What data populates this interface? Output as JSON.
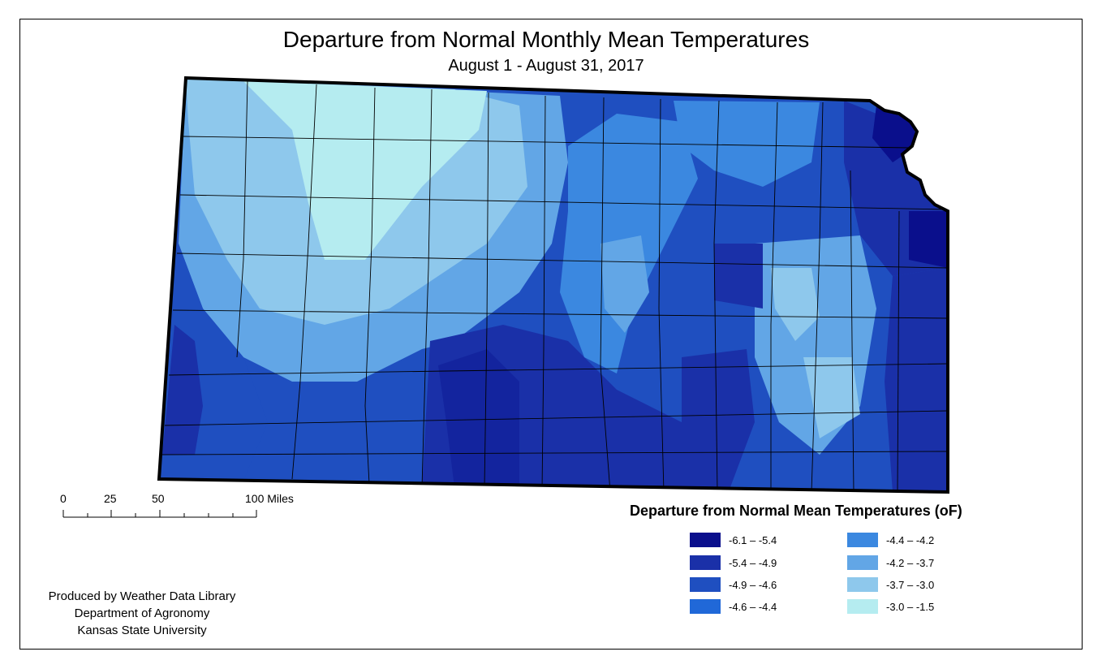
{
  "title": "Departure from Normal Monthly Mean Temperatures",
  "subtitle": "August 1 - August 31, 2017",
  "scalebar": {
    "ticks": [
      "0",
      "25",
      "50",
      "100 Miles"
    ]
  },
  "legend": {
    "title": "Departure from Normal Mean Temperatures (oF)",
    "classes": [
      {
        "label": "-6.1 – -5.4",
        "color": "#0a0f8c"
      },
      {
        "label": "-5.4 – -4.9",
        "color": "#1a30a8"
      },
      {
        "label": "-4.9 – -4.6",
        "color": "#1f4fc0"
      },
      {
        "label": "-4.6 – -4.4",
        "color": "#2068d8"
      },
      {
        "label": "-4.4 – -4.2",
        "color": "#3b88e0"
      },
      {
        "label": "-4.2 – -3.7",
        "color": "#62a6e6"
      },
      {
        "label": "-3.7 – -3.0",
        "color": "#8ec8ec"
      },
      {
        "label": "-3.0 – -1.5",
        "color": "#b5ecf0"
      }
    ]
  },
  "credits": [
    "Produced by Weather Data Library",
    "Department of Agronomy",
    "Kansas State University"
  ]
}
